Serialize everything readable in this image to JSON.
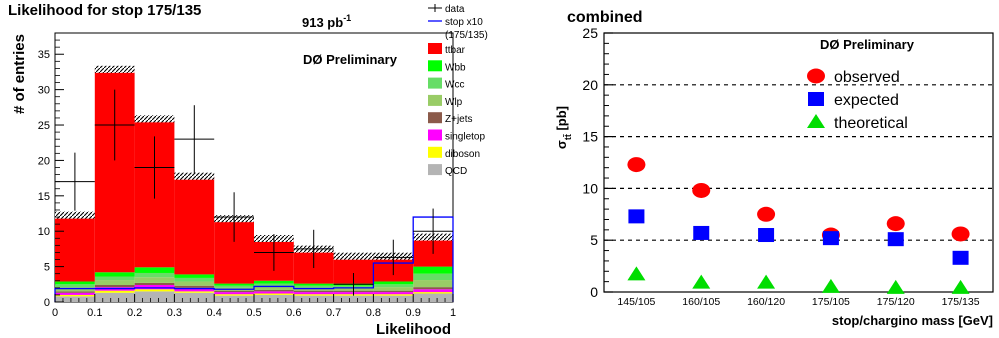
{
  "chart_data": [
    {
      "type": "bar",
      "title": "Likelihood for stop 175/135",
      "luminosity": "913 pb",
      "luminosity_exp": "-1",
      "watermark": "DØ Preliminary",
      "xlabel": "Likelihood",
      "ylabel": "# of entries",
      "xlim": [
        0,
        1
      ],
      "ylim": [
        0,
        38
      ],
      "xticks": [
        "0",
        "0.1",
        "0.2",
        "0.3",
        "0.4",
        "0.5",
        "0.6",
        "0.7",
        "0.8",
        "0.9",
        "1"
      ],
      "yticks": [
        "0",
        "5",
        "10",
        "15",
        "20",
        "25",
        "30",
        "35"
      ],
      "bin_edges": [
        0,
        0.1,
        0.2,
        0.3,
        0.4,
        0.5,
        0.6,
        0.7,
        0.8,
        0.9,
        1.0
      ],
      "stack_order": [
        "QCD",
        "diboson",
        "singletop",
        "Z+jets",
        "Wlp",
        "Wcc",
        "Wbb",
        "ttbar"
      ],
      "series": [
        {
          "name": "QCD",
          "color": "#b4b4b4",
          "values": [
            0.8,
            1.3,
            1.5,
            1.3,
            0.9,
            1.0,
            0.9,
            0.9,
            0.9,
            1.2
          ]
        },
        {
          "name": "diboson",
          "color": "#ffff00",
          "values": [
            0.2,
            0.3,
            0.3,
            0.2,
            0.2,
            0.2,
            0.2,
            0.2,
            0.2,
            0.2
          ]
        },
        {
          "name": "singletop",
          "color": "#ff00ff",
          "values": [
            0.3,
            0.5,
            0.6,
            0.5,
            0.3,
            0.3,
            0.3,
            0.3,
            0.3,
            0.4
          ]
        },
        {
          "name": "Z+jets",
          "color": "#8b5a4a",
          "values": [
            0.2,
            0.3,
            0.3,
            0.3,
            0.2,
            0.2,
            0.2,
            0.2,
            0.2,
            0.3
          ]
        },
        {
          "name": "Wlp",
          "color": "#99cc66",
          "values": [
            0.6,
            0.7,
            0.8,
            0.6,
            0.4,
            0.5,
            0.4,
            0.4,
            0.5,
            1.0
          ]
        },
        {
          "name": "Wcc",
          "color": "#66dd66",
          "values": [
            0.4,
            0.5,
            0.6,
            0.5,
            0.3,
            0.4,
            0.3,
            0.3,
            0.4,
            0.9
          ]
        },
        {
          "name": "Wbb",
          "color": "#00ff00",
          "values": [
            0.4,
            0.6,
            0.8,
            0.5,
            0.3,
            0.4,
            0.3,
            0.3,
            0.4,
            1.0
          ]
        },
        {
          "name": "ttbar",
          "color": "#ff0000",
          "values": [
            9.3,
            28.6,
            20.9,
            13.8,
            9.1,
            5.9,
            4.8,
            3.8,
            3.5,
            4.1
          ]
        }
      ],
      "signal": {
        "name": "stop x10",
        "sub": "(175/135)",
        "color": "#0000ff",
        "values": [
          1.9,
          1.9,
          2.0,
          1.9,
          1.8,
          2.2,
          1.9,
          2.0,
          5.5,
          12.0
        ]
      },
      "data": {
        "name": "data",
        "color": "#000000",
        "values": [
          17,
          25,
          19,
          23,
          12,
          7,
          7.5,
          2.5,
          6.3,
          10
        ],
        "errors": [
          4.1,
          5.0,
          4.4,
          4.8,
          3.5,
          2.6,
          2.7,
          1.6,
          2.5,
          3.2
        ]
      },
      "legend_placement": "top-right"
    },
    {
      "type": "scatter",
      "title": "combined",
      "watermark": "DØ Preliminary",
      "xlabel": "stop/chargino mass [GeV]",
      "ylabel_main": "σ",
      "ylabel_sub": "tt̄",
      "ylabel_unit": " [pb]",
      "categories": [
        "145/105",
        "160/105",
        "160/120",
        "175/105",
        "175/120",
        "175/135"
      ],
      "ylim": [
        0,
        25
      ],
      "yticks": [
        "0",
        "5",
        "10",
        "15",
        "20",
        "25"
      ],
      "grid": "horizontal dashed",
      "series": [
        {
          "name": "observed",
          "marker": "circle",
          "color": "#ff0000",
          "values": [
            12.3,
            9.8,
            7.5,
            5.5,
            6.6,
            5.6
          ]
        },
        {
          "name": "expected",
          "marker": "square",
          "color": "#0000ff",
          "values": [
            7.3,
            5.7,
            5.5,
            5.2,
            5.1,
            3.3
          ]
        },
        {
          "name": "theoretical",
          "marker": "triangle",
          "color": "#00dd00",
          "values": [
            1.7,
            0.9,
            0.9,
            0.5,
            0.4,
            0.4
          ]
        }
      ],
      "legend_placement": "top-right"
    }
  ]
}
